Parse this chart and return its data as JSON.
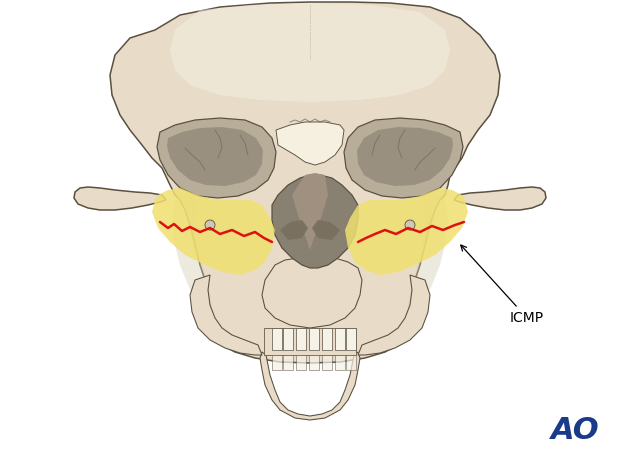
{
  "background_color": "#ffffff",
  "fig_width": 6.2,
  "fig_height": 4.59,
  "dpi": 100,
  "ao_text": "AO",
  "ao_color": "#1a3a8a",
  "ao_fontsize": 22,
  "icmp_text": "ICMP",
  "icmp_color": "#000000",
  "icmp_fontsize": 10,
  "bone_fill": "#e8dcc8",
  "bone_edge": "#5a5040",
  "bone_edge_lw": 1.1,
  "orbit_dark": "#9a9080",
  "orbit_mid": "#b8ad98",
  "nasal_dark": "#888070",
  "yellow_fill": "#f0e070",
  "yellow_alpha": 0.85,
  "red_color": "#dd1111",
  "teeth_fill": "#f5f2e8",
  "shadow_color": "#d0c8b0",
  "highlight_color": "#f5f0e0"
}
